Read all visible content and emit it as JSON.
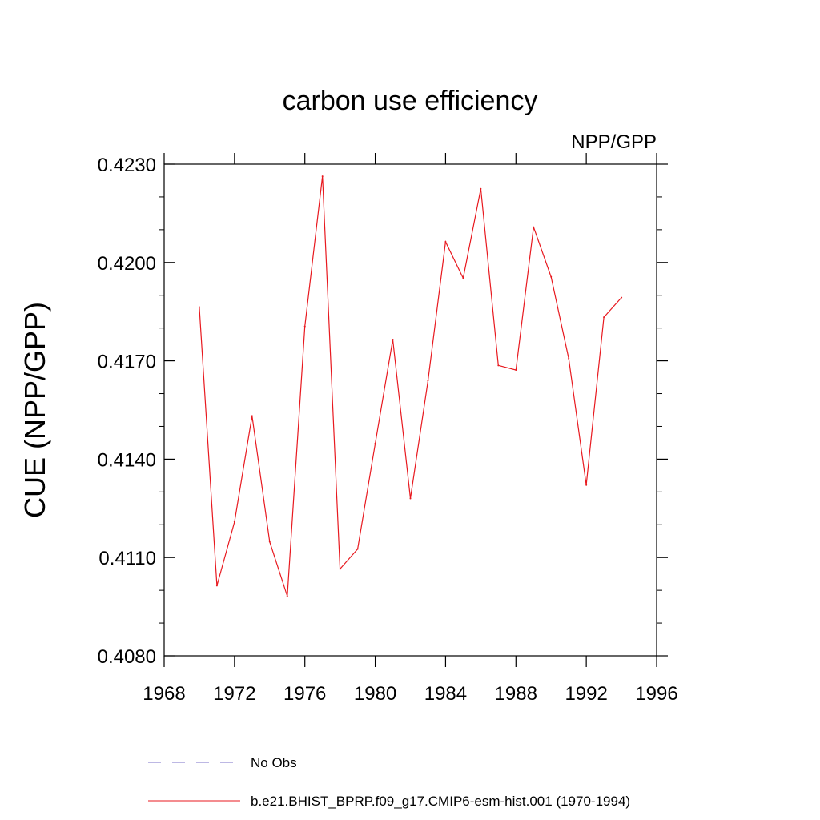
{
  "chart_data": {
    "type": "line",
    "title": "carbon use efficiency",
    "subtitle": "NPP/GPP",
    "ylabel": "CUE  (NPP/GPP)",
    "xlabel": "",
    "xlim": [
      1968,
      1996
    ],
    "ylim": [
      0.408,
      0.423
    ],
    "x_ticks": [
      1968,
      1972,
      1976,
      1980,
      1984,
      1988,
      1992,
      1996
    ],
    "x_tick_labels": [
      "1968",
      "1972",
      "1976",
      "1980",
      "1984",
      "1988",
      "1992",
      "1996"
    ],
    "y_ticks": [
      0.408,
      0.411,
      0.414,
      0.417,
      0.42,
      0.423
    ],
    "y_tick_labels": [
      "0.4080",
      "0.4110",
      "0.4140",
      "0.4170",
      "0.4200",
      "0.4230"
    ],
    "grid": false,
    "legend_placement": "bottom",
    "series": [
      {
        "name": "b.e21.BHIST_BPRP.f09_g17.CMIP6-esm-hist.001 (1970-1994)",
        "color": "#e8191f",
        "x": [
          1970,
          1971,
          1972,
          1973,
          1974,
          1975,
          1976,
          1977,
          1978,
          1979,
          1980,
          1981,
          1982,
          1983,
          1984,
          1985,
          1986,
          1987,
          1988,
          1989,
          1990,
          1991,
          1992,
          1993,
          1994
        ],
        "y": [
          0.41864,
          0.41014,
          0.41209,
          0.41532,
          0.41148,
          0.40982,
          0.41805,
          0.42263,
          0.41065,
          0.41126,
          0.41448,
          0.41765,
          0.4128,
          0.4164,
          0.42063,
          0.41952,
          0.42225,
          0.41686,
          0.41672,
          0.42108,
          0.41956,
          0.41707,
          0.41321,
          0.41833,
          0.41893
        ]
      }
    ],
    "obs_legend": {
      "label": "No Obs",
      "color": "#7b72c8"
    }
  }
}
